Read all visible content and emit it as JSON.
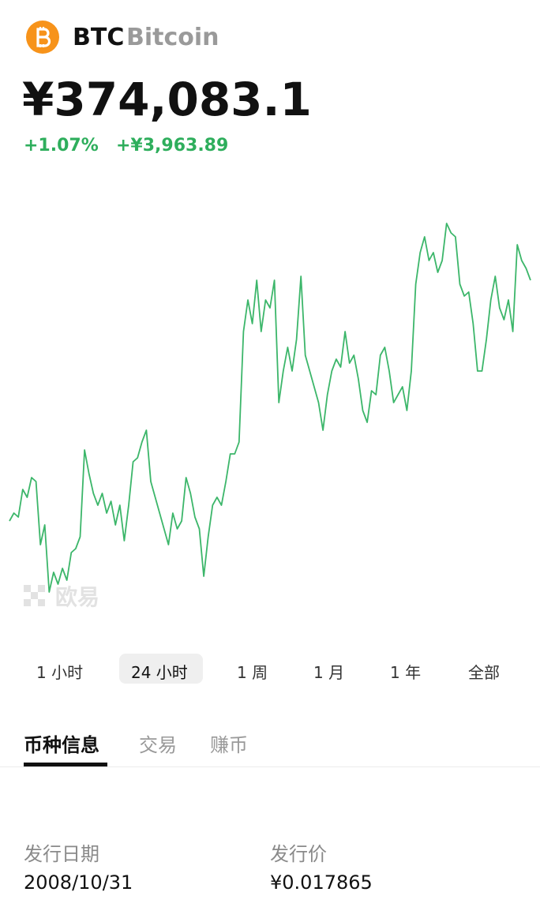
{
  "header": {
    "symbol": "BTC",
    "name": "Bitcoin",
    "price": "¥374,083.1",
    "change_pct": "+1.07%",
    "change_abs": "+¥3,963.89"
  },
  "chart_data": {
    "type": "line",
    "color": "#3cb66a",
    "values": [
      370118,
      370248,
      370183,
      370638,
      370508,
      370833,
      370768,
      369728,
      370053,
      368948,
      369273,
      369078,
      369338,
      369143,
      369598,
      369663,
      369858,
      371288,
      370898,
      370573,
      370378,
      370573,
      370248,
      370443,
      370053,
      370378,
      369793,
      370378,
      371093,
      371158,
      371418,
      371613,
      370768,
      370508,
      370248,
      369988,
      369728,
      370248,
      369988,
      370118,
      370833,
      370573,
      370183,
      369988,
      369208,
      369858,
      370378,
      370508,
      370378,
      370768,
      371223,
      371223,
      371418,
      373238,
      373758,
      373368,
      374083,
      373238,
      373758,
      373628,
      374083,
      372068,
      372588,
      372978,
      372588,
      373108,
      374148,
      372848,
      372588,
      372328,
      372068,
      371613,
      372198,
      372588,
      372783,
      372653,
      373238,
      372718,
      372848,
      372458,
      371938,
      371743,
      372263,
      372198,
      372848,
      372978,
      372588,
      372068,
      372198,
      372328,
      371938,
      372588,
      374018,
      374538,
      374798,
      374408,
      374538,
      374213,
      374408,
      375019,
      374863,
      374798,
      374018,
      373823,
      373888,
      373368,
      372588,
      372588,
      373108,
      373758,
      374148,
      373628,
      373433,
      373758,
      373238,
      374668,
      374408,
      374278,
      374083.1
    ]
  },
  "watermark": "欧易",
  "periods": [
    {
      "label": "1 小时",
      "selected": false
    },
    {
      "label": "24 小时",
      "selected": true
    },
    {
      "label": "1 周",
      "selected": false
    },
    {
      "label": "1 月",
      "selected": false
    },
    {
      "label": "1 年",
      "selected": false
    },
    {
      "label": "全部",
      "selected": false
    }
  ],
  "tabs": [
    {
      "label": "币种信息",
      "active": true
    },
    {
      "label": "交易",
      "active": false
    },
    {
      "label": "赚币",
      "active": false
    }
  ],
  "info": [
    {
      "label": "发行日期",
      "value": "2008/10/31"
    },
    {
      "label": "发行价",
      "value": "¥0.017865"
    }
  ]
}
